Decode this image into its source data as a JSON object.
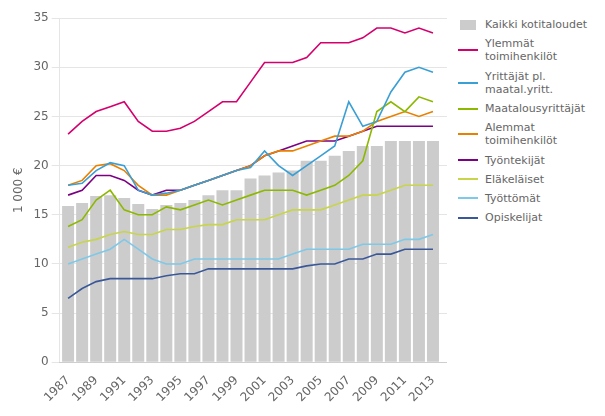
{
  "chart_data": {
    "type": "bar",
    "x": [
      1987,
      1988,
      1989,
      1990,
      1991,
      1992,
      1993,
      1994,
      1995,
      1996,
      1997,
      1998,
      1999,
      2000,
      2001,
      2002,
      2003,
      2004,
      2005,
      2006,
      2007,
      2008,
      2009,
      2010,
      2011,
      2012,
      2013
    ],
    "series": [
      {
        "name": "Kaikki kotitaloudet",
        "type": "bar",
        "color": "#cccccc",
        "values": [
          15.9,
          16.2,
          16.9,
          17.0,
          16.7,
          16.1,
          15.6,
          16.0,
          16.2,
          16.5,
          17.0,
          17.5,
          17.5,
          18.7,
          19.0,
          19.3,
          19.5,
          20.5,
          20.5,
          21.0,
          21.5,
          22.0,
          22.0,
          22.5,
          22.5,
          22.5,
          22.5
        ]
      },
      {
        "name": "Ylemmät\ntoimihenkilöt",
        "type": "line",
        "color": "#d4006e",
        "values": [
          23.2,
          24.5,
          25.5,
          26.0,
          26.5,
          24.5,
          23.5,
          23.5,
          23.8,
          24.5,
          25.5,
          26.5,
          26.5,
          28.5,
          30.5,
          30.5,
          30.5,
          31.0,
          32.5,
          32.5,
          32.5,
          33.0,
          34.0,
          34.0,
          33.5,
          34.0,
          33.5
        ]
      },
      {
        "name": "Yrittäjät pl.\nmaatal.yritt.",
        "type": "line",
        "color": "#3a9fd4",
        "values": [
          18.0,
          18.2,
          19.5,
          20.3,
          20.0,
          17.5,
          17.0,
          17.2,
          17.5,
          18.0,
          18.5,
          19.0,
          19.5,
          19.8,
          21.5,
          20.0,
          19.0,
          20.0,
          21.0,
          22.0,
          26.5,
          24.0,
          24.5,
          27.5,
          29.5,
          30.0,
          29.5
        ]
      },
      {
        "name": "Maatalousyrittäjät",
        "type": "line",
        "color": "#8db800",
        "values": [
          13.8,
          14.5,
          16.5,
          17.5,
          15.5,
          15.0,
          15.0,
          15.8,
          15.5,
          16.0,
          16.5,
          16.0,
          16.5,
          17.0,
          17.5,
          17.5,
          17.5,
          17.0,
          17.5,
          18.0,
          19.0,
          20.5,
          25.5,
          26.5,
          25.5,
          27.0,
          26.5
        ]
      },
      {
        "name": "Alemmat\ntoimihenkilöt",
        "type": "line",
        "color": "#e88000",
        "values": [
          18.0,
          18.5,
          20.0,
          20.2,
          19.5,
          18.0,
          17.0,
          17.0,
          17.5,
          18.0,
          18.5,
          19.0,
          19.5,
          20.0,
          21.0,
          21.5,
          21.5,
          22.0,
          22.5,
          23.0,
          23.0,
          23.5,
          24.5,
          25.0,
          25.5,
          25.0,
          25.5
        ]
      },
      {
        "name": "Työntekijät",
        "type": "line",
        "color": "#7b0082",
        "values": [
          17.0,
          17.5,
          19.0,
          19.0,
          18.5,
          17.5,
          17.0,
          17.5,
          17.5,
          18.0,
          18.5,
          19.0,
          19.5,
          20.0,
          21.0,
          21.5,
          22.0,
          22.5,
          22.5,
          22.5,
          23.0,
          23.5,
          24.0,
          24.0,
          24.0,
          24.0,
          24.0
        ]
      },
      {
        "name": "Eläkeläiset",
        "type": "line",
        "color": "#c8d44a",
        "values": [
          11.7,
          12.2,
          12.5,
          13.0,
          13.3,
          13.0,
          13.0,
          13.5,
          13.5,
          13.8,
          14.0,
          14.0,
          14.5,
          14.5,
          14.5,
          15.0,
          15.5,
          15.5,
          15.5,
          16.0,
          16.5,
          17.0,
          17.0,
          17.5,
          18.0,
          18.0,
          18.0
        ]
      },
      {
        "name": "Työttömät",
        "type": "line",
        "color": "#7ec8e8",
        "values": [
          10.0,
          10.5,
          11.0,
          11.5,
          12.5,
          11.5,
          10.5,
          10.0,
          10.0,
          10.5,
          10.5,
          10.5,
          10.5,
          10.5,
          10.5,
          10.5,
          11.0,
          11.5,
          11.5,
          11.5,
          11.5,
          12.0,
          12.0,
          12.0,
          12.5,
          12.5,
          13.0
        ]
      },
      {
        "name": "Opiskelijat",
        "type": "line",
        "color": "#3a5898",
        "values": [
          6.5,
          7.5,
          8.2,
          8.5,
          8.5,
          8.5,
          8.5,
          8.8,
          9.0,
          9.0,
          9.5,
          9.5,
          9.5,
          9.5,
          9.5,
          9.5,
          9.5,
          9.8,
          10.0,
          10.0,
          10.5,
          10.5,
          11.0,
          11.0,
          11.5,
          11.5,
          11.5
        ]
      }
    ],
    "ylabel": "1 000 €",
    "xlim": [
      1986.4,
      2014.0
    ],
    "xticks": [
      1987,
      1989,
      1991,
      1993,
      1995,
      1997,
      1999,
      2001,
      2003,
      2005,
      2007,
      2009,
      2011,
      2013
    ],
    "ylim": [
      0,
      35
    ],
    "yticks": [
      0,
      5,
      10,
      15,
      20,
      25,
      30,
      35
    ],
    "grid": true,
    "legend": "right"
  }
}
